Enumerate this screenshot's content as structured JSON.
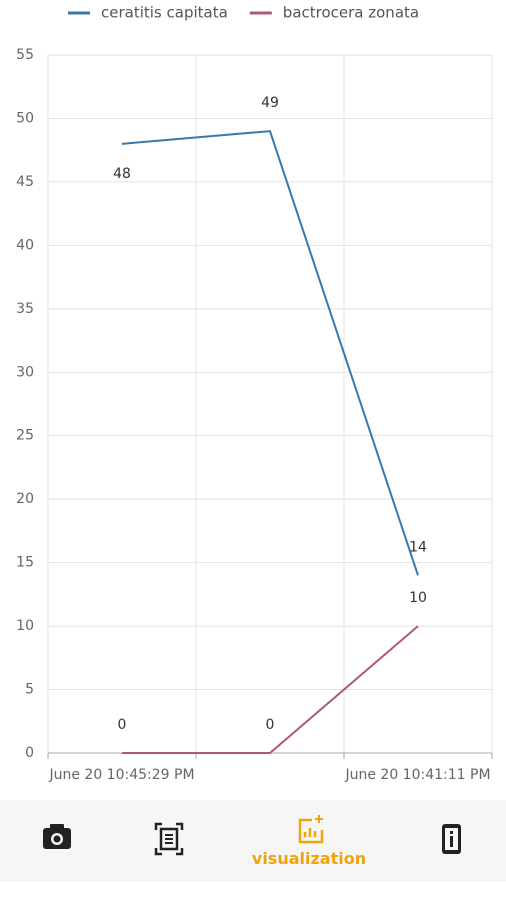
{
  "chart_data": {
    "type": "line",
    "categories": [
      "June 20 10:45:29 PM",
      null,
      "June 20 10:41:11 PM"
    ],
    "series": [
      {
        "name": "ceratitis capitata",
        "color": "#3b77a8",
        "values": [
          48,
          49,
          14
        ]
      },
      {
        "name": "bactrocera zonata",
        "color": "#b05a6e",
        "values": [
          0,
          0,
          10
        ]
      }
    ],
    "ylim": [
      0,
      55
    ],
    "yticks": [
      0,
      5,
      10,
      15,
      20,
      25,
      30,
      35,
      40,
      45,
      50,
      55
    ],
    "grid": true,
    "legend": "top"
  },
  "nav": {
    "active_label": "visualization"
  }
}
